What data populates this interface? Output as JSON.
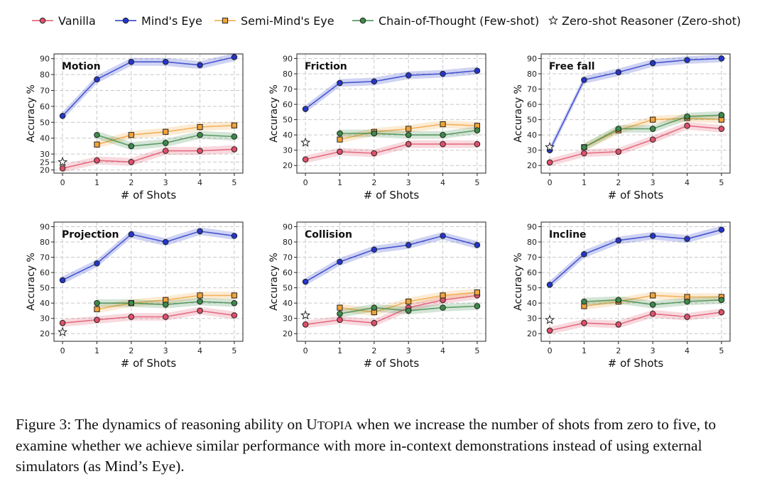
{
  "legend": {
    "items": [
      {
        "key": "vanilla",
        "label": "Vanilla"
      },
      {
        "key": "minds_eye",
        "label": "Mind's Eye"
      },
      {
        "key": "semi",
        "label": "Semi-Mind's Eye"
      },
      {
        "key": "cot",
        "label": "Chain-of-Thought (Few-shot)"
      },
      {
        "key": "zero",
        "label": "Zero-shot Reasoner (Zero-shot)"
      }
    ]
  },
  "colors": {
    "vanilla": "#e0506a",
    "minds_eye": "#2436c8",
    "semi": "#f0a43a",
    "cot": "#3d8a4a",
    "zero": "#ffffff"
  },
  "axis_labels": {
    "xlabel": "# of Shots",
    "ylabel": "Accuracy %"
  },
  "caption": {
    "prefix": "Figure 3: The dynamics of reasoning ability on ",
    "name_initial": "U",
    "name_rest": "TOPIA",
    "suffix": " when we increase the number of shots from zero to five, to examine whether we achieve similar performance with more in-context demonstrations instead of using external simulators (as Mind’s Eye)."
  },
  "chart_data": [
    {
      "type": "line",
      "title": "Motion",
      "xlabel": "# of Shots",
      "ylabel": "Accuracy %",
      "x": [
        0,
        1,
        2,
        3,
        4,
        5
      ],
      "ylim": [
        18,
        93
      ],
      "yticks": [
        20,
        25,
        30,
        40,
        50,
        60,
        70,
        80,
        90
      ],
      "series": [
        {
          "name": "Vanilla",
          "key": "vanilla",
          "x": [
            0,
            1,
            2,
            3,
            4,
            5
          ],
          "values": [
            21,
            26,
            25,
            32,
            32,
            33
          ]
        },
        {
          "name": "Mind's Eye",
          "key": "minds_eye",
          "x": [
            0,
            1,
            2,
            3,
            4,
            5
          ],
          "values": [
            54,
            77,
            88,
            88,
            86,
            91
          ]
        },
        {
          "name": "Semi-Mind's Eye",
          "key": "semi",
          "x": [
            1,
            2,
            3,
            4,
            5
          ],
          "values": [
            36,
            42,
            44,
            47,
            48
          ]
        },
        {
          "name": "Chain-of-Thought (Few-shot)",
          "key": "cot",
          "x": [
            1,
            2,
            3,
            4,
            5
          ],
          "values": [
            42,
            35,
            37,
            42,
            41
          ]
        },
        {
          "name": "Zero-shot Reasoner (Zero-shot)",
          "key": "zero",
          "x": [
            0
          ],
          "values": [
            25
          ]
        }
      ]
    },
    {
      "type": "line",
      "title": "Friction",
      "xlabel": "# of Shots",
      "ylabel": "Accuracy %",
      "x": [
        0,
        1,
        2,
        3,
        4,
        5
      ],
      "ylim": [
        15,
        93
      ],
      "yticks": [
        20,
        30,
        40,
        50,
        60,
        70,
        80,
        90
      ],
      "series": [
        {
          "name": "Vanilla",
          "key": "vanilla",
          "x": [
            0,
            1,
            2,
            3,
            4,
            5
          ],
          "values": [
            24,
            29,
            28,
            34,
            34,
            34
          ]
        },
        {
          "name": "Mind's Eye",
          "key": "minds_eye",
          "x": [
            0,
            1,
            2,
            3,
            4,
            5
          ],
          "values": [
            57,
            74,
            75,
            79,
            80,
            82
          ]
        },
        {
          "name": "Semi-Mind's Eye",
          "key": "semi",
          "x": [
            1,
            2,
            3,
            4,
            5
          ],
          "values": [
            37,
            42,
            44,
            47,
            46
          ]
        },
        {
          "name": "Chain-of-Thought (Few-shot)",
          "key": "cot",
          "x": [
            1,
            2,
            3,
            4,
            5
          ],
          "values": [
            41,
            41,
            40,
            40,
            43
          ]
        },
        {
          "name": "Zero-shot Reasoner (Zero-shot)",
          "key": "zero",
          "x": [
            0
          ],
          "values": [
            35
          ]
        }
      ]
    },
    {
      "type": "line",
      "title": "Free fall",
      "xlabel": "# of Shots",
      "ylabel": "Accuracy %",
      "x": [
        0,
        1,
        2,
        3,
        4,
        5
      ],
      "ylim": [
        15,
        93
      ],
      "yticks": [
        20,
        30,
        40,
        50,
        60,
        70,
        80,
        90
      ],
      "series": [
        {
          "name": "Vanilla",
          "key": "vanilla",
          "x": [
            0,
            1,
            2,
            3,
            4,
            5
          ],
          "values": [
            22,
            28,
            29,
            37,
            46,
            44
          ]
        },
        {
          "name": "Mind's Eye",
          "key": "minds_eye",
          "x": [
            0,
            1,
            2,
            3,
            4,
            5
          ],
          "values": [
            30,
            76,
            81,
            87,
            89,
            90
          ]
        },
        {
          "name": "Semi-Mind's Eye",
          "key": "semi",
          "x": [
            1,
            2,
            3,
            4,
            5
          ],
          "values": [
            32,
            43,
            50,
            51,
            50
          ]
        },
        {
          "name": "Chain-of-Thought (Few-shot)",
          "key": "cot",
          "x": [
            1,
            2,
            3,
            4,
            5
          ],
          "values": [
            32,
            44,
            44,
            52,
            53
          ]
        },
        {
          "name": "Zero-shot Reasoner (Zero-shot)",
          "key": "zero",
          "x": [
            0
          ],
          "values": [
            32
          ]
        }
      ]
    },
    {
      "type": "line",
      "title": "Projection",
      "xlabel": "# of Shots",
      "ylabel": "Accuracy %",
      "x": [
        0,
        1,
        2,
        3,
        4,
        5
      ],
      "ylim": [
        15,
        93
      ],
      "yticks": [
        20,
        30,
        40,
        50,
        60,
        70,
        80,
        90
      ],
      "series": [
        {
          "name": "Vanilla",
          "key": "vanilla",
          "x": [
            0,
            1,
            2,
            3,
            4,
            5
          ],
          "values": [
            27,
            29,
            31,
            31,
            35,
            32
          ]
        },
        {
          "name": "Mind's Eye",
          "key": "minds_eye",
          "x": [
            0,
            1,
            2,
            3,
            4,
            5
          ],
          "values": [
            55,
            66,
            85,
            80,
            87,
            84
          ]
        },
        {
          "name": "Semi-Mind's Eye",
          "key": "semi",
          "x": [
            1,
            2,
            3,
            4,
            5
          ],
          "values": [
            36,
            40,
            42,
            45,
            45
          ]
        },
        {
          "name": "Chain-of-Thought (Few-shot)",
          "key": "cot",
          "x": [
            1,
            2,
            3,
            4,
            5
          ],
          "values": [
            40,
            40,
            39,
            41,
            40
          ]
        },
        {
          "name": "Zero-shot Reasoner (Zero-shot)",
          "key": "zero",
          "x": [
            0
          ],
          "values": [
            21
          ]
        }
      ]
    },
    {
      "type": "line",
      "title": "Collision",
      "xlabel": "# of Shots",
      "ylabel": "Accuracy %",
      "x": [
        0,
        1,
        2,
        3,
        4,
        5
      ],
      "ylim": [
        15,
        93
      ],
      "yticks": [
        20,
        30,
        40,
        50,
        60,
        70,
        80,
        90
      ],
      "series": [
        {
          "name": "Vanilla",
          "key": "vanilla",
          "x": [
            0,
            1,
            2,
            3,
            4,
            5
          ],
          "values": [
            26,
            29,
            27,
            37,
            42,
            45
          ]
        },
        {
          "name": "Mind's Eye",
          "key": "minds_eye",
          "x": [
            0,
            1,
            2,
            3,
            4,
            5
          ],
          "values": [
            54,
            67,
            75,
            78,
            84,
            78
          ]
        },
        {
          "name": "Semi-Mind's Eye",
          "key": "semi",
          "x": [
            1,
            2,
            3,
            4,
            5
          ],
          "values": [
            37,
            34,
            41,
            45,
            47
          ]
        },
        {
          "name": "Chain-of-Thought (Few-shot)",
          "key": "cot",
          "x": [
            1,
            2,
            3,
            4,
            5
          ],
          "values": [
            33,
            37,
            35,
            37,
            38
          ]
        },
        {
          "name": "Zero-shot Reasoner (Zero-shot)",
          "key": "zero",
          "x": [
            0
          ],
          "values": [
            32
          ]
        }
      ]
    },
    {
      "type": "line",
      "title": "Incline",
      "xlabel": "# of Shots",
      "ylabel": "Accuracy %",
      "x": [
        0,
        1,
        2,
        3,
        4,
        5
      ],
      "ylim": [
        15,
        93
      ],
      "yticks": [
        20,
        30,
        40,
        50,
        60,
        70,
        80,
        90
      ],
      "series": [
        {
          "name": "Vanilla",
          "key": "vanilla",
          "x": [
            0,
            1,
            2,
            3,
            4,
            5
          ],
          "values": [
            22,
            27,
            26,
            33,
            31,
            34
          ]
        },
        {
          "name": "Mind's Eye",
          "key": "minds_eye",
          "x": [
            0,
            1,
            2,
            3,
            4,
            5
          ],
          "values": [
            52,
            72,
            81,
            84,
            82,
            88
          ]
        },
        {
          "name": "Semi-Mind's Eye",
          "key": "semi",
          "x": [
            1,
            2,
            3,
            4,
            5
          ],
          "values": [
            38,
            41,
            45,
            44,
            44
          ]
        },
        {
          "name": "Chain-of-Thought (Few-shot)",
          "key": "cot",
          "x": [
            1,
            2,
            3,
            4,
            5
          ],
          "values": [
            41,
            42,
            39,
            41,
            42
          ]
        },
        {
          "name": "Zero-shot Reasoner (Zero-shot)",
          "key": "zero",
          "x": [
            0
          ],
          "values": [
            29
          ]
        }
      ]
    }
  ]
}
